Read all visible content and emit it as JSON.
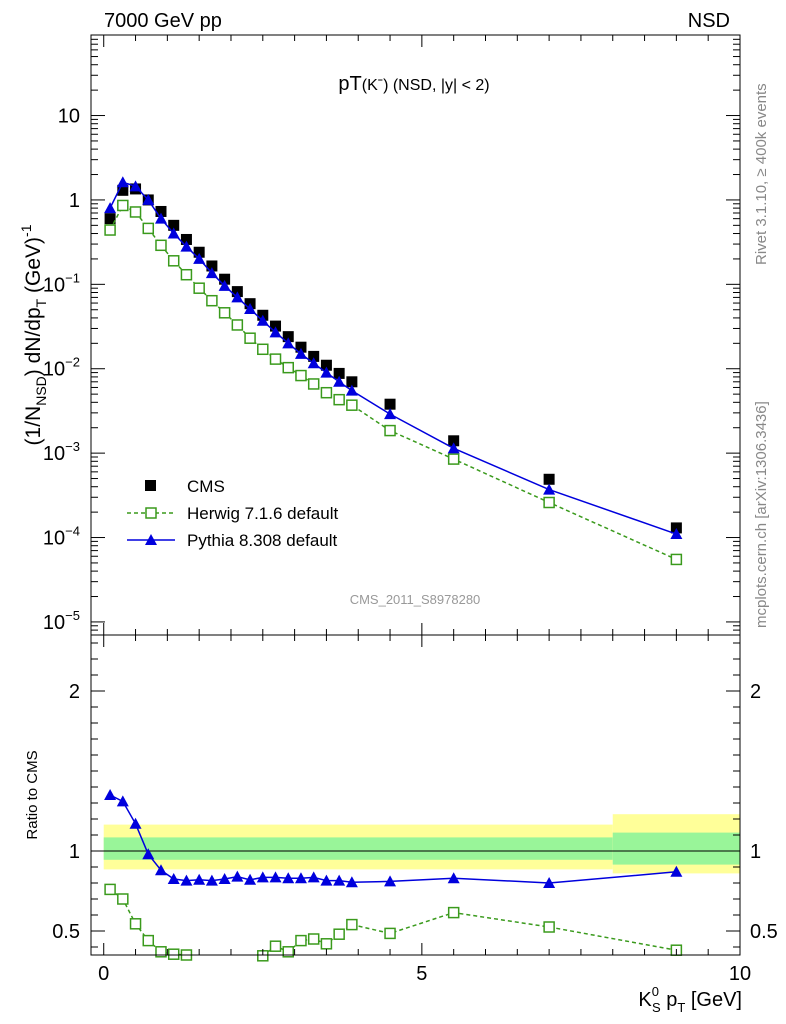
{
  "header": {
    "left": "7000 GeV pp",
    "right": "NSD"
  },
  "side_labels": {
    "rivet": "Rivet 3.1.10, ≥ 400k events",
    "mcplots": "mcplots.cern.ch [arXiv:1306.3436]"
  },
  "chart_data": [
    {
      "type": "scatter",
      "title": "pT(Kˉ) (NSD, |y| < 2)",
      "title_main": "pT",
      "title_sub": "(Kˉ) (NSD, |y| < 2)",
      "ylabel": "(1/N_NSD) dN/dp_T (GeV)^-1",
      "ylabel_parts": {
        "pre": "(1/N",
        "sub1": "NSD",
        "mid": ") dN/dp",
        "sub2": "T",
        "post": " (GeV)",
        "sup": "-1"
      },
      "yscale": "log",
      "ylim": [
        7e-06,
        90
      ],
      "xlim": [
        -0.2,
        10
      ],
      "yticks": [
        {
          "v": 10,
          "mant": "10",
          "exp": ""
        },
        {
          "v": 1,
          "mant": "1",
          "exp": ""
        },
        {
          "v": 0.1,
          "mant": "10",
          "exp": "−1"
        },
        {
          "v": 0.01,
          "mant": "10",
          "exp": "−2"
        },
        {
          "v": 0.001,
          "mant": "10",
          "exp": "−3"
        },
        {
          "v": 0.0001,
          "mant": "10",
          "exp": "−4"
        },
        {
          "v": 1e-05,
          "mant": "10",
          "exp": "−5"
        }
      ],
      "watermark": "CMS_2011_S8978280",
      "legend_position": "bottom-left",
      "legend": [
        "CMS",
        "Herwig 7.1.6 default",
        "Pythia 8.308 default"
      ],
      "x": [
        0.1,
        0.3,
        0.5,
        0.7,
        0.9,
        1.1,
        1.3,
        1.5,
        1.7,
        1.9,
        2.1,
        2.3,
        2.5,
        2.7,
        2.9,
        3.1,
        3.3,
        3.5,
        3.7,
        3.9,
        4.5,
        5.5,
        7.0,
        9.0
      ],
      "series": [
        {
          "name": "CMS",
          "color": "#000000",
          "marker": "filled-square",
          "values": [
            0.6,
            1.3,
            1.35,
            1.0,
            0.73,
            0.5,
            0.34,
            0.24,
            0.165,
            0.115,
            0.082,
            0.059,
            0.043,
            0.032,
            0.024,
            0.018,
            0.014,
            0.011,
            0.0088,
            0.007,
            0.0038,
            0.0014,
            0.00049,
            0.00013
          ]
        },
        {
          "name": "Herwig 7.1.6 default",
          "color": "#3a9a1c",
          "marker": "open-square",
          "line": "dashed",
          "values": [
            0.44,
            0.86,
            0.72,
            0.46,
            0.29,
            0.19,
            0.13,
            0.09,
            0.064,
            0.046,
            0.033,
            0.023,
            0.017,
            0.013,
            0.0103,
            0.0083,
            0.0066,
            0.0052,
            0.0043,
            0.0037,
            0.00185,
            0.00085,
            0.00026,
            5.5e-05
          ]
        },
        {
          "name": "Pythia 8.308 default",
          "color": "#0000dd",
          "marker": "filled-triangle",
          "line": "solid",
          "values": [
            0.8,
            1.62,
            1.45,
            1.0,
            0.6,
            0.4,
            0.28,
            0.2,
            0.136,
            0.096,
            0.07,
            0.051,
            0.037,
            0.027,
            0.02,
            0.015,
            0.0116,
            0.009,
            0.007,
            0.0055,
            0.0029,
            0.00114,
            0.00037,
            0.00011
          ]
        }
      ]
    },
    {
      "type": "scatter",
      "ylabel": "Ratio to CMS",
      "xlabel": "K_S^0 p_T [GeV]",
      "xlabel_parts": {
        "k": "K",
        "sup": "0",
        "sub": "S",
        "rest": " p",
        "sub2": "T",
        "post": " [GeV]"
      },
      "xlim": [
        -0.2,
        10
      ],
      "ylim": [
        0.35,
        2.35
      ],
      "yticks": [
        {
          "v": 0.5,
          "label": "0.5"
        },
        {
          "v": 1,
          "label": "1"
        },
        {
          "v": 2,
          "label": "2"
        }
      ],
      "xticks": [
        {
          "v": 0,
          "label": "0"
        },
        {
          "v": 5,
          "label": "5"
        },
        {
          "v": 10,
          "label": "10"
        }
      ],
      "reference_line": 1,
      "bands": [
        {
          "x0": 0,
          "x1": 8,
          "yellow": [
            0.885,
            1.165
          ],
          "green": [
            0.945,
            1.085
          ]
        },
        {
          "x0": 8,
          "x1": 10,
          "yellow": [
            0.86,
            1.23
          ],
          "green": [
            0.915,
            1.115
          ]
        }
      ],
      "x": [
        0.1,
        0.3,
        0.5,
        0.7,
        0.9,
        1.1,
        1.3,
        1.5,
        1.7,
        1.9,
        2.1,
        2.3,
        2.5,
        2.7,
        2.9,
        3.1,
        3.3,
        3.5,
        3.7,
        3.9,
        4.5,
        5.5,
        7.0,
        9.0
      ],
      "series": [
        {
          "name": "Herwig 7.1.6 default",
          "color": "#3a9a1c",
          "marker": "open-square",
          "line": "dashed",
          "values": [
            0.76,
            0.7,
            0.545,
            0.44,
            0.37,
            0.355,
            0.35,
            null,
            null,
            null,
            null,
            null,
            0.345,
            0.405,
            0.37,
            0.44,
            0.45,
            0.42,
            0.48,
            0.54,
            0.485,
            0.615,
            0.525,
            0.38
          ]
        },
        {
          "name": "Pythia 8.308 default",
          "color": "#0000dd",
          "marker": "filled-triangle",
          "line": "solid",
          "values": [
            1.35,
            1.31,
            1.17,
            0.98,
            0.88,
            0.825,
            0.815,
            0.82,
            0.815,
            0.825,
            0.84,
            0.82,
            0.835,
            0.835,
            0.83,
            0.83,
            0.835,
            0.815,
            0.815,
            0.805,
            0.81,
            0.83,
            0.8,
            0.87
          ]
        }
      ]
    }
  ]
}
